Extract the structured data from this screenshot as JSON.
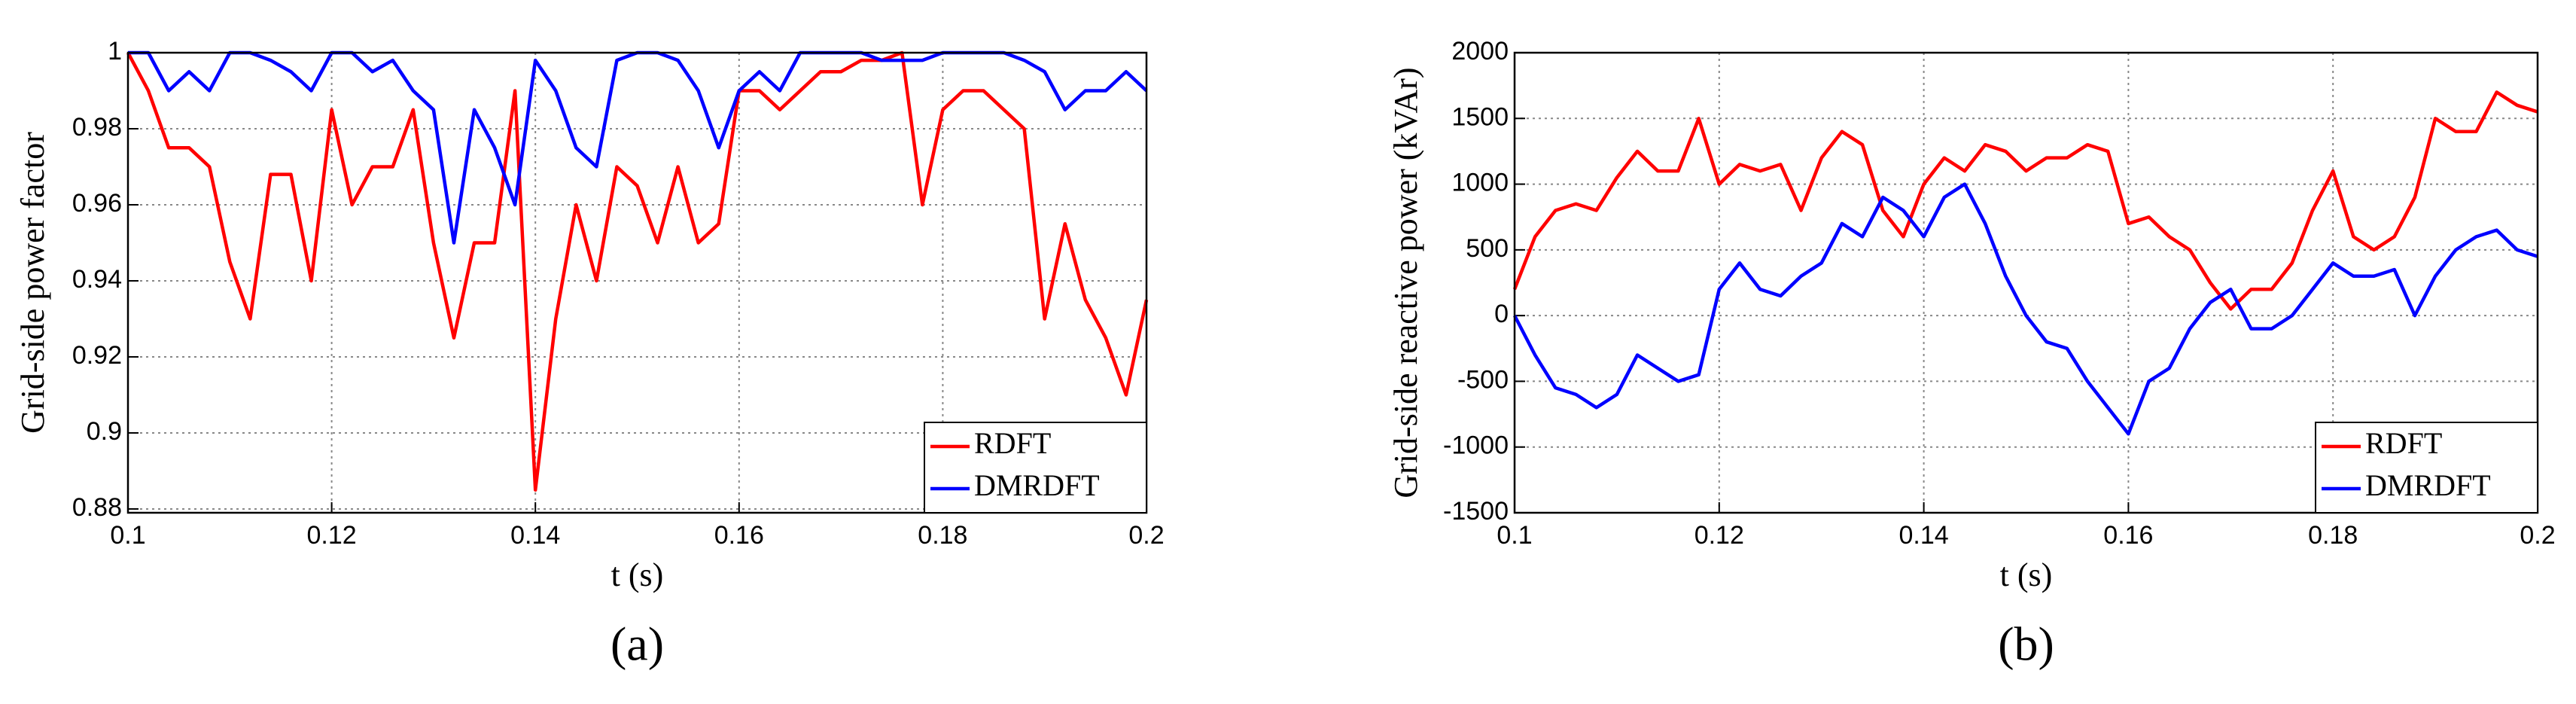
{
  "chart_data": [
    {
      "type": "line",
      "panel_label": "(a)",
      "xlabel": "t (s)",
      "ylabel": "Grid-side power factor",
      "xlim": [
        0.1,
        0.2
      ],
      "xticks": [
        0.1,
        0.12,
        0.14,
        0.16,
        0.18,
        0.2
      ],
      "ylim": [
        0.879,
        1
      ],
      "yticks": [
        0.88,
        0.9,
        0.92,
        0.94,
        0.96,
        0.98,
        1
      ],
      "grid": true,
      "legend": "lower right",
      "x": [
        0.1,
        0.102,
        0.104,
        0.106,
        0.108,
        0.11,
        0.112,
        0.114,
        0.116,
        0.118,
        0.12,
        0.122,
        0.124,
        0.126,
        0.128,
        0.13,
        0.132,
        0.134,
        0.136,
        0.138,
        0.14,
        0.142,
        0.144,
        0.146,
        0.148,
        0.15,
        0.152,
        0.154,
        0.156,
        0.158,
        0.16,
        0.162,
        0.164,
        0.166,
        0.168,
        0.17,
        0.172,
        0.174,
        0.176,
        0.178,
        0.18,
        0.182,
        0.184,
        0.186,
        0.188,
        0.19,
        0.192,
        0.194,
        0.196,
        0.198,
        0.2
      ],
      "series": [
        {
          "name": "RDFT",
          "color": "#ff0000",
          "values": [
            1.0,
            0.99,
            0.975,
            0.975,
            0.97,
            0.945,
            0.93,
            0.968,
            0.968,
            0.94,
            0.985,
            0.96,
            0.97,
            0.97,
            0.985,
            0.95,
            0.925,
            0.95,
            0.95,
            0.99,
            0.885,
            0.93,
            0.96,
            0.94,
            0.97,
            0.965,
            0.95,
            0.97,
            0.95,
            0.955,
            0.99,
            0.99,
            0.985,
            0.99,
            0.995,
            0.995,
            0.998,
            0.998,
            1.0,
            0.96,
            0.985,
            0.99,
            0.99,
            0.985,
            0.98,
            0.93,
            0.955,
            0.935,
            0.925,
            0.91,
            0.935
          ]
        },
        {
          "name": "DMRDFT",
          "color": "#0000ff",
          "values": [
            1.0,
            1.0,
            0.99,
            0.995,
            0.99,
            1.0,
            1.0,
            0.998,
            0.995,
            0.99,
            1.0,
            1.0,
            0.995,
            0.998,
            0.99,
            0.985,
            0.95,
            0.985,
            0.975,
            0.96,
            0.998,
            0.99,
            0.975,
            0.97,
            0.998,
            1.0,
            1.0,
            0.998,
            0.99,
            0.975,
            0.99,
            0.995,
            0.99,
            1.0,
            1.0,
            1.0,
            1.0,
            0.998,
            0.998,
            0.998,
            1.0,
            1.0,
            1.0,
            1.0,
            0.998,
            0.995,
            0.985,
            0.99,
            0.99,
            0.995,
            0.99
          ]
        }
      ]
    },
    {
      "type": "line",
      "panel_label": "(b)",
      "xlabel": "t (s)",
      "ylabel": "Grid-side reactive power (kVAr)",
      "xlim": [
        0.1,
        0.2
      ],
      "xticks": [
        0.1,
        0.12,
        0.14,
        0.16,
        0.18,
        0.2
      ],
      "ylim": [
        -1500,
        2000
      ],
      "yticks": [
        -1500,
        -1000,
        -500,
        0,
        500,
        1000,
        1500,
        2000
      ],
      "grid": true,
      "legend": "lower right",
      "x": [
        0.1,
        0.102,
        0.104,
        0.106,
        0.108,
        0.11,
        0.112,
        0.114,
        0.116,
        0.118,
        0.12,
        0.122,
        0.124,
        0.126,
        0.128,
        0.13,
        0.132,
        0.134,
        0.136,
        0.138,
        0.14,
        0.142,
        0.144,
        0.146,
        0.148,
        0.15,
        0.152,
        0.154,
        0.156,
        0.158,
        0.16,
        0.162,
        0.164,
        0.166,
        0.168,
        0.17,
        0.172,
        0.174,
        0.176,
        0.178,
        0.18,
        0.182,
        0.184,
        0.186,
        0.188,
        0.19,
        0.192,
        0.194,
        0.196,
        0.198,
        0.2
      ],
      "series": [
        {
          "name": "RDFT",
          "color": "#ff0000",
          "values": [
            200,
            600,
            800,
            850,
            800,
            1050,
            1250,
            1100,
            1100,
            1500,
            1000,
            1150,
            1100,
            1150,
            800,
            1200,
            1400,
            1300,
            800,
            600,
            1000,
            1200,
            1100,
            1300,
            1250,
            1100,
            1200,
            1200,
            1300,
            1250,
            700,
            750,
            600,
            500,
            250,
            50,
            200,
            200,
            400,
            800,
            1100,
            600,
            500,
            600,
            900,
            1500,
            1400,
            1400,
            1700,
            1600,
            1550
          ]
        },
        {
          "name": "DMRDFT",
          "color": "#0000ff",
          "values": [
            0,
            -300,
            -550,
            -600,
            -700,
            -600,
            -300,
            -400,
            -500,
            -450,
            200,
            400,
            200,
            150,
            300,
            400,
            700,
            600,
            900,
            800,
            600,
            900,
            1000,
            700,
            300,
            0,
            -200,
            -250,
            -500,
            -700,
            -900,
            -500,
            -400,
            -100,
            100,
            200,
            -100,
            -100,
            0,
            200,
            400,
            300,
            300,
            350,
            0,
            300,
            500,
            600,
            650,
            500,
            450
          ]
        }
      ]
    }
  ]
}
